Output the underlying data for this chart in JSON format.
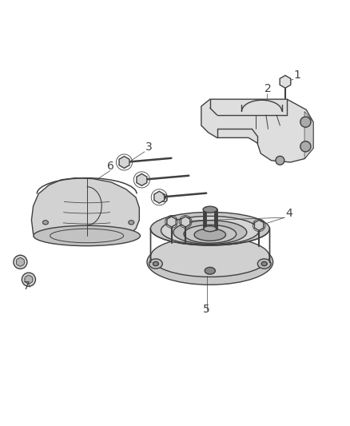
{
  "background_color": "#ffffff",
  "line_color": "#404040",
  "line_width": 1.0,
  "fig_width": 4.38,
  "fig_height": 5.33,
  "dpi": 100,
  "label_fontsize": 10
}
